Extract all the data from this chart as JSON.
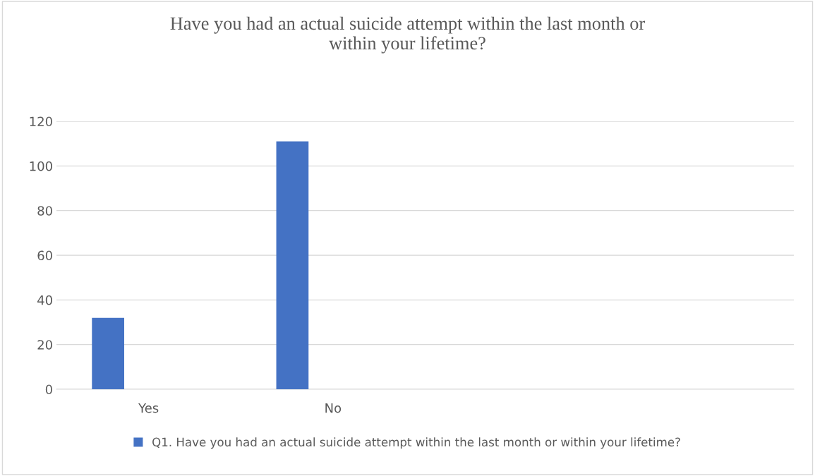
{
  "chart_data": {
    "type": "bar",
    "title": "Have you had an actual suicide attempt within the last month or\nwithin your lifetime?",
    "categories": [
      "Yes",
      "No",
      null,
      null
    ],
    "series": [
      {
        "name": "Q1. Have you had an actual suicide attempt within the last month or within your lifetime?",
        "color": "#4472c4",
        "values": [
          32,
          111,
          null,
          null
        ]
      }
    ],
    "ylim": [
      0,
      120
    ],
    "yticks": [
      0,
      20,
      40,
      60,
      80,
      100,
      120
    ],
    "grid": "y",
    "legend": "bottom"
  }
}
